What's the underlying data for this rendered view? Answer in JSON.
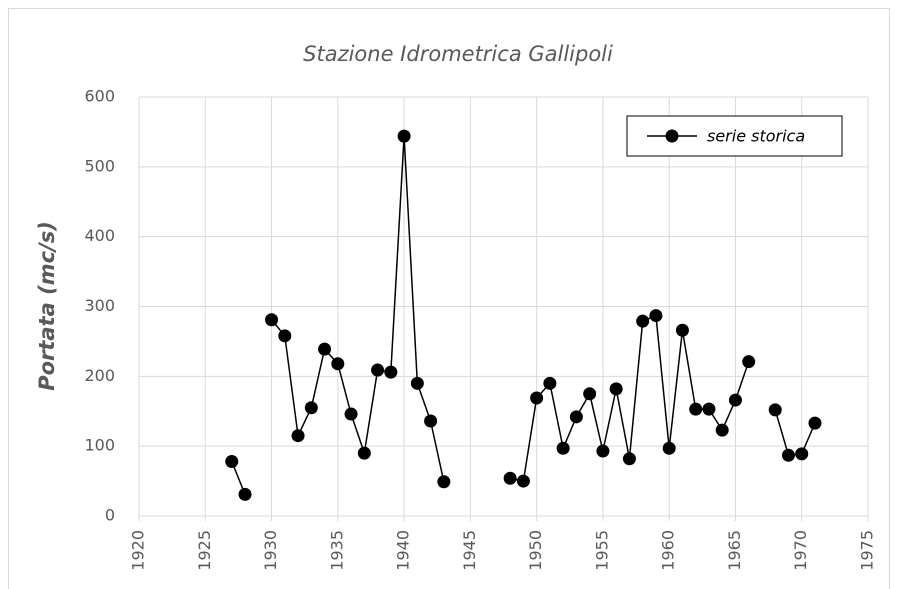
{
  "chart_data": {
    "type": "line",
    "title": "Stazione Idrometrica Gallipoli",
    "y_label": "Portata (mc/s)",
    "x": [
      1927,
      1928,
      1929,
      1930,
      1931,
      1932,
      1933,
      1934,
      1935,
      1936,
      1937,
      1938,
      1939,
      1940,
      1941,
      1942,
      1943,
      1944,
      1945,
      1946,
      1947,
      1948,
      1949,
      1950,
      1951,
      1952,
      1953,
      1954,
      1955,
      1956,
      1957,
      1958,
      1959,
      1960,
      1961,
      1962,
      1963,
      1964,
      1965,
      1966,
      1967,
      1968,
      1969,
      1970,
      1971
    ],
    "series": [
      {
        "name": "serie storica",
        "color": "#000000",
        "values": [
          78,
          31,
          null,
          281,
          258,
          115,
          155,
          239,
          218,
          146,
          90,
          209,
          206,
          544,
          190,
          136,
          49,
          null,
          null,
          null,
          null,
          54,
          50,
          169,
          190,
          97,
          142,
          175,
          93,
          182,
          82,
          279,
          287,
          97,
          266,
          153,
          153,
          123,
          166,
          221,
          null,
          152,
          87,
          89,
          133
        ]
      }
    ],
    "xlim": [
      1920,
      1975
    ],
    "xticks": [
      1920,
      1925,
      1930,
      1935,
      1940,
      1945,
      1950,
      1955,
      1960,
      1965,
      1970,
      1975
    ],
    "ylim": [
      0,
      600
    ],
    "yticks": [
      0,
      100,
      200,
      300,
      400,
      500,
      600
    ],
    "grid": true,
    "legend": "upper right"
  }
}
